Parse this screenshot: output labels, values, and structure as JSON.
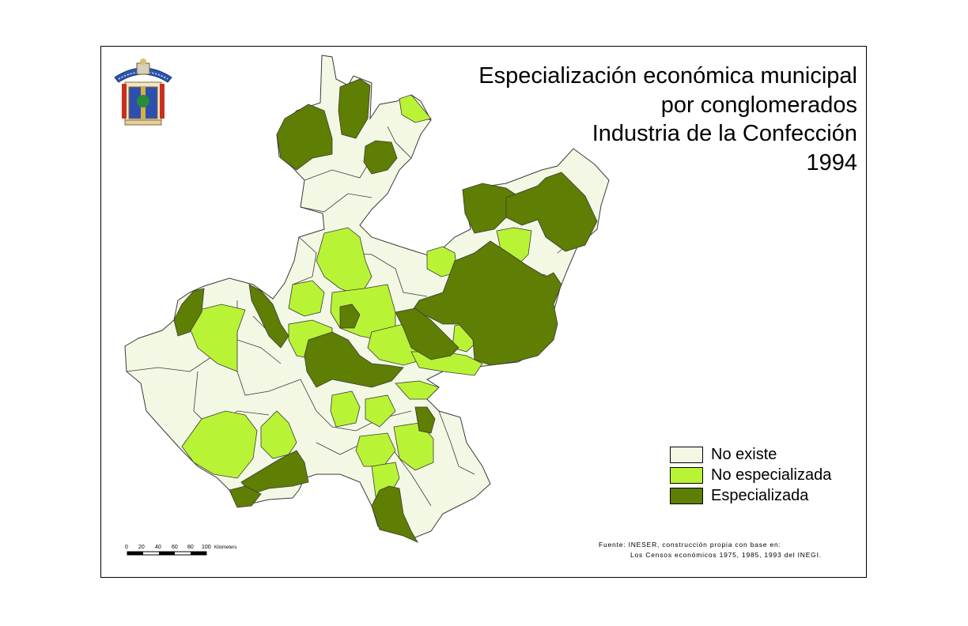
{
  "title": {
    "line1": "Especialización económica municipal",
    "line2": "por conglomerados",
    "line3": "Industria  de la Confección",
    "line4": "1994"
  },
  "legend": {
    "items": [
      {
        "label": "No existe",
        "color": "#f3f8e4"
      },
      {
        "label": "No especializada",
        "color": "#b9f335"
      },
      {
        "label": "Especializada",
        "color": "#5e7e04"
      }
    ]
  },
  "scale": {
    "ticks": [
      "0",
      "20",
      "40",
      "60",
      "80",
      "100"
    ],
    "unit": "Kilometers"
  },
  "source": {
    "line1": "Fuente: INESER, construcción propia con base en:",
    "line2": "Los Censos económicos 1975, 1985, 1993 del INEGI."
  },
  "colors": {
    "frame": "#000000",
    "border": "#3a3a3a"
  }
}
